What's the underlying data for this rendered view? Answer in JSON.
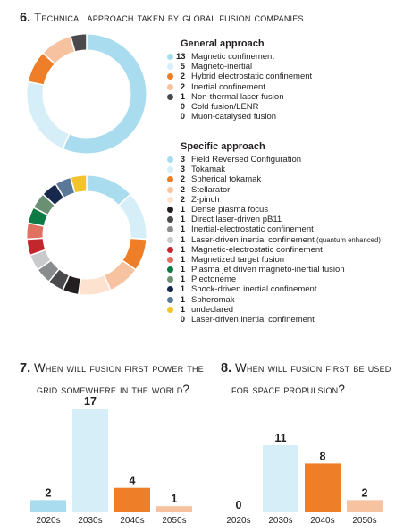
{
  "section6": {
    "number": "6.",
    "title": "Technical approach taken by global fusion companies",
    "general_heading": "General approach",
    "specific_heading": "Specific approach"
  },
  "section7": {
    "number": "7.",
    "title_line1": "When will fusion first power the",
    "title_line2": "grid somewhere in the world?"
  },
  "section8": {
    "number": "8.",
    "title_line1": "When will fusion first be used",
    "title_line2": "for space propulsion?"
  },
  "chart_data": [
    {
      "type": "pie",
      "style": "donut",
      "heading": "General approach",
      "categories": [
        "Magnetic confinement",
        "Magneto-inertial",
        "Hybrid electrostatic confinement",
        "Inertial confinement",
        "Non-thermal laser fusion",
        "Cold fusion/LENR",
        "Muon-catalysed fusion"
      ],
      "values": [
        13,
        5,
        2,
        2,
        1,
        0,
        0
      ],
      "colors": [
        "#a9dcee",
        "#d6eef8",
        "#ef7e28",
        "#f7c2a0",
        "#4a4a4c",
        "#e8e8e8",
        "#e8e8e8"
      ],
      "start_angle_deg": 0
    },
    {
      "type": "pie",
      "style": "donut",
      "heading": "Specific approach",
      "categories": [
        "Field Reversed Configuration",
        "Tokamak",
        "Spherical tokamak",
        "Stellarator",
        "Z-pinch",
        "Dense plasma focus",
        "Direct laser-driven pB11",
        "Inertial-electrostatic confinement",
        "Laser-driven inertial confinement",
        "Magnetic-electrostatic confinement",
        "Magnetized target fusion",
        "Plasma jet driven magneto-inertial fusion",
        "Plectoneme",
        "Shock-driven inertial confinement",
        "Spheromak",
        "undeclared",
        "Laser-driven inertial confinement"
      ],
      "notes": [
        "",
        "",
        "",
        "",
        "",
        "",
        "",
        "",
        "(quantum enhanced)",
        "",
        "",
        "",
        "",
        "",
        "",
        "",
        ""
      ],
      "values": [
        3,
        3,
        2,
        2,
        2,
        1,
        1,
        1,
        1,
        1,
        1,
        1,
        1,
        1,
        1,
        1,
        0
      ],
      "colors": [
        "#a9dcee",
        "#d6eef8",
        "#ef7e28",
        "#f7c2a0",
        "#fde3cf",
        "#231f20",
        "#4a4a4c",
        "#8a8b8d",
        "#c9cacc",
        "#c4262e",
        "#e07060",
        "#0e7a45",
        "#6b8f72",
        "#17284f",
        "#5a7898",
        "#f2c32a",
        "#ffffff"
      ],
      "start_angle_deg": 0
    },
    {
      "type": "bar",
      "title": "When will fusion first power the grid somewhere in the world?",
      "categories": [
        "2020s",
        "2030s",
        "2040s",
        "2050s"
      ],
      "values": [
        2,
        17,
        4,
        1
      ],
      "colors": [
        "#a9dcee",
        "#d6eef8",
        "#ef7e28",
        "#f7c2a0"
      ]
    },
    {
      "type": "bar",
      "title": "When will fusion first be used for space propulsion?",
      "categories": [
        "2020s",
        "2030s",
        "2040s",
        "2050s"
      ],
      "values": [
        0,
        11,
        8,
        2
      ],
      "colors": [
        "#a9dcee",
        "#d6eef8",
        "#ef7e28",
        "#f7c2a0"
      ]
    }
  ]
}
